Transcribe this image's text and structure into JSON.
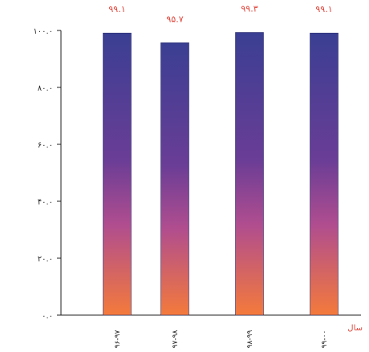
{
  "chart_data": {
    "type": "bar",
    "categories": [
      "۹۶-۹۷",
      "۹۷-۹۸",
      "۹۸-۹۹",
      "۹۹-۰۰"
    ],
    "values": [
      99.1,
      95.7,
      99.3,
      99.1
    ],
    "data_labels": [
      "۹۹.۱",
      "۹۵.۷",
      "۹۹.۳",
      "۹۹.۱"
    ],
    "ytick_values": [
      0,
      20,
      40,
      60,
      80,
      100
    ],
    "ytick_labels": [
      "۰.۰",
      "۲۰.۰",
      "۴۰.۰",
      "۶۰.۰",
      "۸۰.۰",
      "۱۰۰.۰"
    ],
    "ylim": [
      0,
      100
    ],
    "xlabel": "سال",
    "title": "",
    "ylabel": "",
    "grid": false,
    "colors": {
      "bar_top": "#3a3f93",
      "bar_mid": "#b04d8f",
      "bar_bottom": "#f47a3b",
      "label": "#e0443a",
      "axis": "#1f1f1f"
    }
  }
}
